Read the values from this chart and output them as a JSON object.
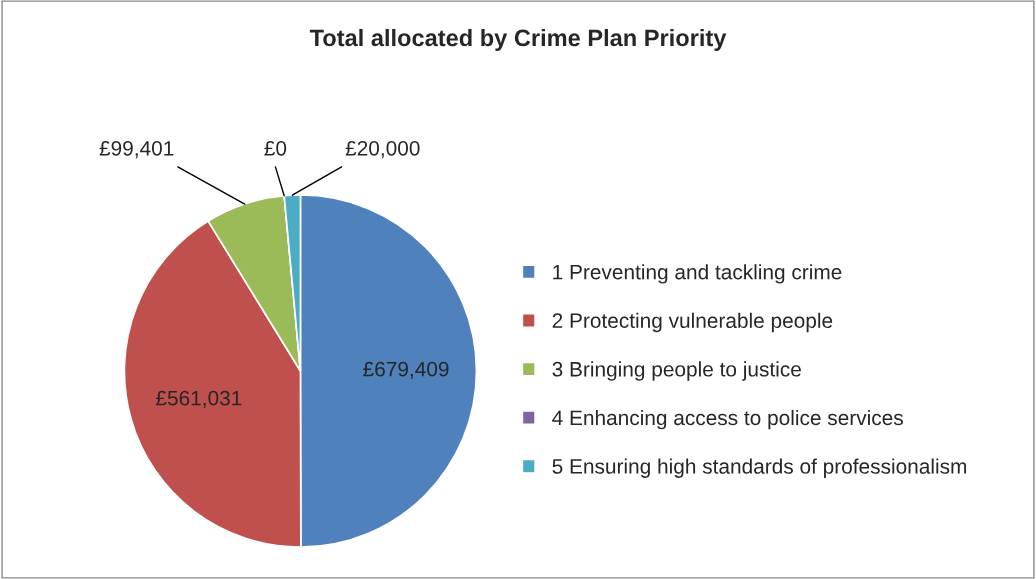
{
  "chart_data": {
    "type": "pie",
    "title": "Total allocated by Crime Plan Priority",
    "categories": [
      "1 Preventing and tackling crime",
      "2 Protecting vulnerable people",
      "3 Bringing people to justice",
      "4 Enhancing access to police services",
      "5 Ensuring high standards of professionalism"
    ],
    "values": [
      679409,
      561031,
      99401,
      0,
      20000
    ],
    "colors": [
      "#4f81bd",
      "#c0504d",
      "#9bbb59",
      "#8064a2",
      "#4bacc6"
    ],
    "value_labels": [
      "£679,409",
      "£561,031",
      "£99,401",
      "£0",
      "£20,000"
    ],
    "legend": "right"
  }
}
